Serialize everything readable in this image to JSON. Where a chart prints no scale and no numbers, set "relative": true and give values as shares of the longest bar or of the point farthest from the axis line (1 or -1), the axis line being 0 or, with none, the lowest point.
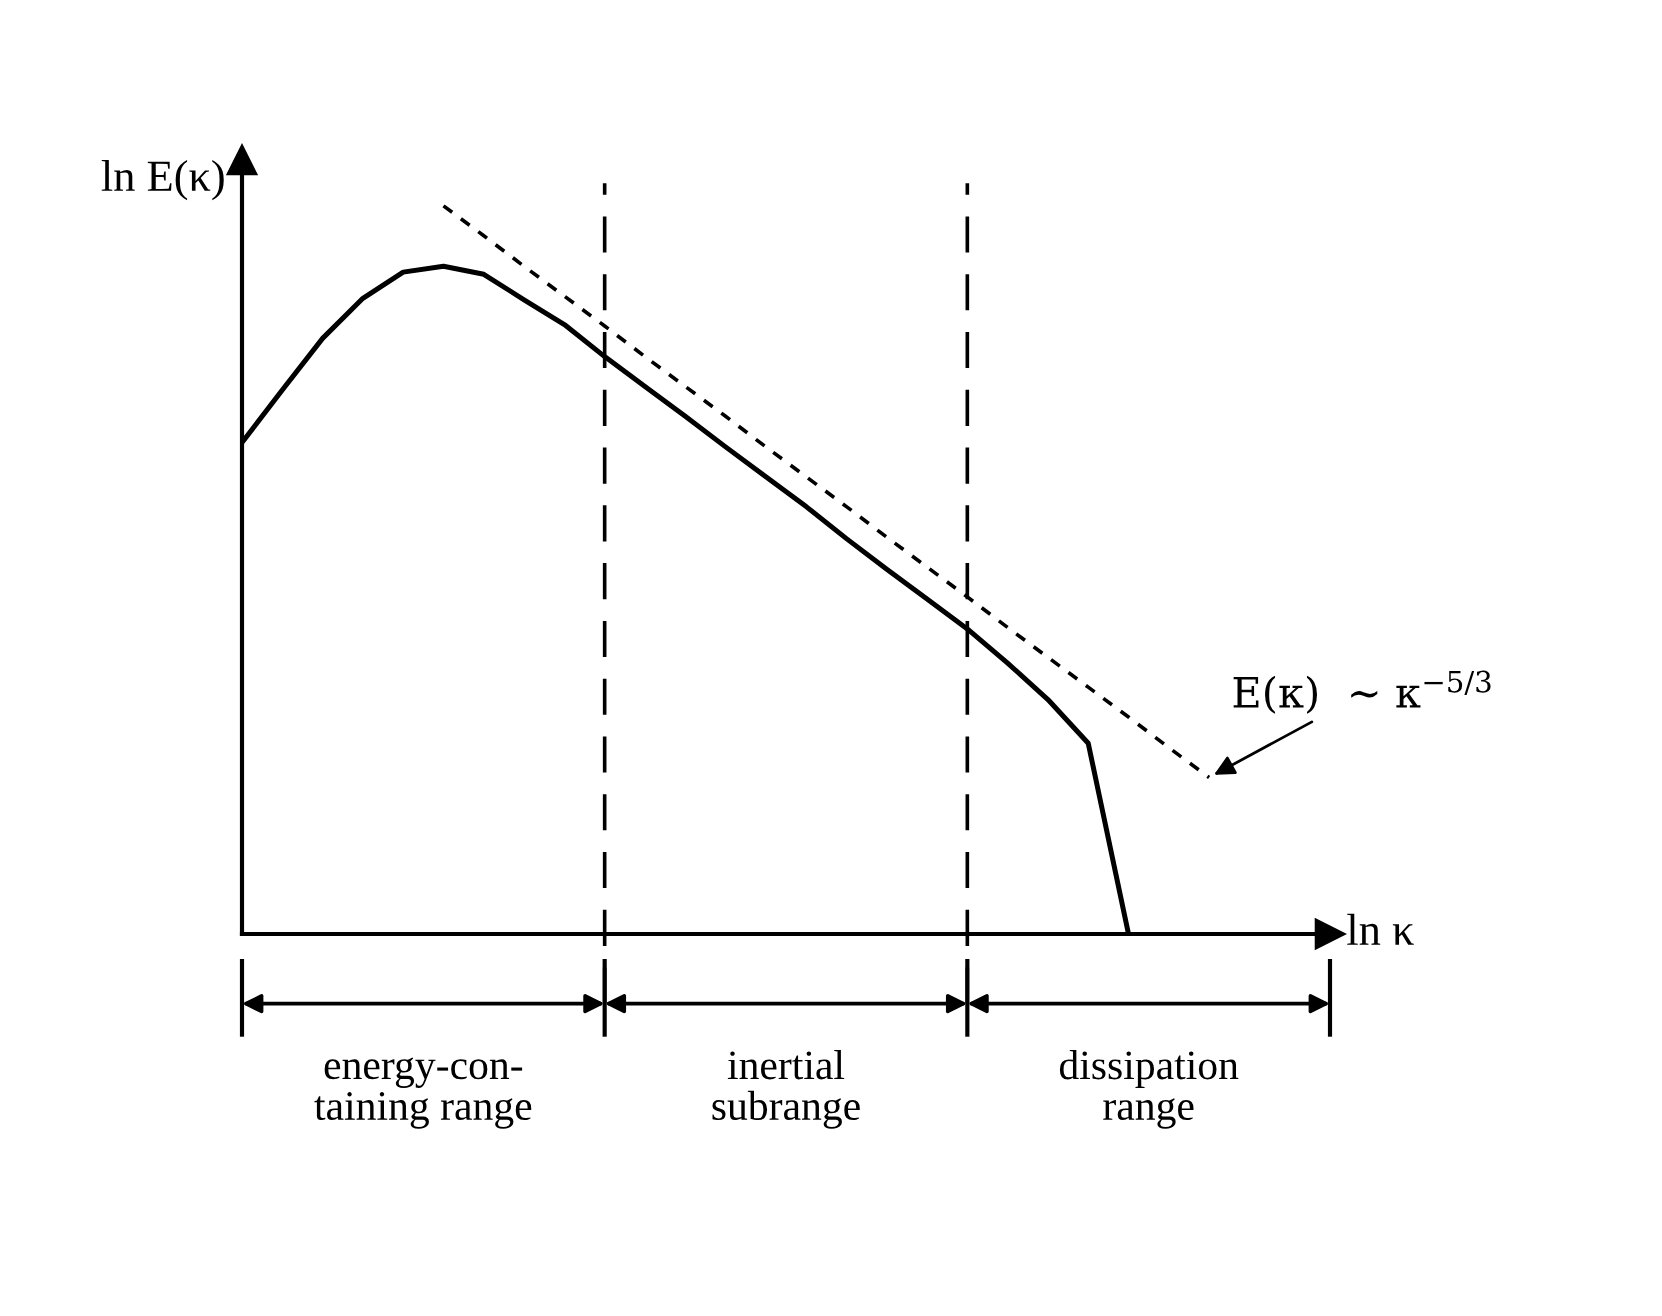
{
  "chart_data": {
    "type": "line",
    "relative": true,
    "xlabel": "ln κ",
    "ylabel": "ln E(κ)",
    "marker": "none",
    "categories": [
      null,
      null,
      null,
      null,
      null,
      null,
      null,
      null,
      null,
      null,
      null,
      null,
      null,
      null,
      null,
      null,
      null,
      null,
      null,
      null,
      null,
      null,
      null,
      null,
      null,
      null,
      null
    ],
    "series": [
      {
        "color": "#000000",
        "line_style": "solid",
        "values": [
          0.675,
          0.747,
          0.818,
          0.873,
          0.909,
          0.917,
          0.906,
          0.871,
          0.837,
          0.793,
          0.752,
          0.711,
          0.669,
          0.628,
          0.587,
          0.543,
          0.501,
          0.46,
          0.419,
          0.372,
          0.322,
          0.262,
          0,
          null,
          null,
          null,
          null
        ]
      },
      {
        "color": "#000000",
        "line_style": "dotted",
        "values": [
          null,
          null,
          null,
          null,
          null,
          1.0,
          0.959,
          0.917,
          0.876,
          0.835,
          0.793,
          0.752,
          0.711,
          0.669,
          0.628,
          0.587,
          0.545,
          0.504,
          0.463,
          0.421,
          0.38,
          0.339,
          0.298,
          0.256,
          0.215,
          null,
          null
        ]
      }
    ],
    "annotations": [
      "E(κ)  ∼ κ$^{−5/3}$",
      "energy-con-\ntaining range",
      "inertial\nsubrange",
      "dissipation\nrange"
    ]
  }
}
